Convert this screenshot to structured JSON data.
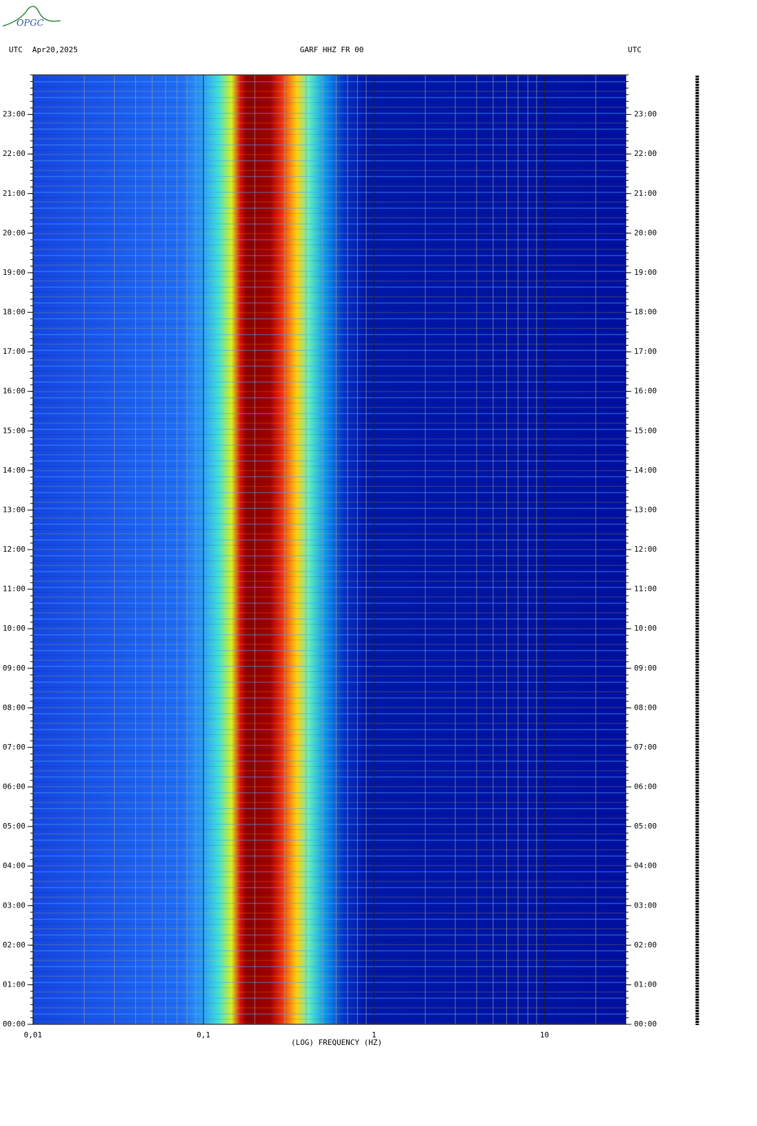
{
  "logo": "OPGC",
  "chart_data": {
    "type": "spectrogram",
    "title": "GARF HHZ FR 00",
    "date": "Apr20,2025",
    "time_zone_left": "UTC",
    "time_zone_right": "UTC",
    "xlabel": "(LOG) FREQUENCY (HZ)",
    "xscale": "log",
    "xlim": [
      0.01,
      30
    ],
    "xticks": [
      {
        "value": 0.01,
        "label": "0,01"
      },
      {
        "value": 0.1,
        "label": "0,1"
      },
      1,
      10
    ],
    "ylim": [
      0,
      24
    ],
    "yticks": [
      {
        "value": 0,
        "label": "00:00"
      },
      {
        "value": 1,
        "label": "01:00"
      },
      {
        "value": 2,
        "label": "02:00"
      },
      {
        "value": 3,
        "label": "03:00"
      },
      {
        "value": 4,
        "label": "04:00"
      },
      {
        "value": 5,
        "label": "05:00"
      },
      {
        "value": 6,
        "label": "06:00"
      },
      {
        "value": 7,
        "label": "07:00"
      },
      {
        "value": 8,
        "label": "08:00"
      },
      {
        "value": 9,
        "label": "09:00"
      },
      {
        "value": 10,
        "label": "10:00"
      },
      {
        "value": 11,
        "label": "11:00"
      },
      {
        "value": 12,
        "label": "12:00"
      },
      {
        "value": 13,
        "label": "13:00"
      },
      {
        "value": 14,
        "label": "14:00"
      },
      {
        "value": 15,
        "label": "15:00"
      },
      {
        "value": 16,
        "label": "16:00"
      },
      {
        "value": 17,
        "label": "17:00"
      },
      {
        "value": 18,
        "label": "18:00"
      },
      {
        "value": 19,
        "label": "19:00"
      },
      {
        "value": 20,
        "label": "20:00"
      },
      {
        "value": 21,
        "label": "21:00"
      },
      {
        "value": 22,
        "label": "22:00"
      },
      {
        "value": 23,
        "label": "23:00"
      }
    ],
    "grid": true
  }
}
